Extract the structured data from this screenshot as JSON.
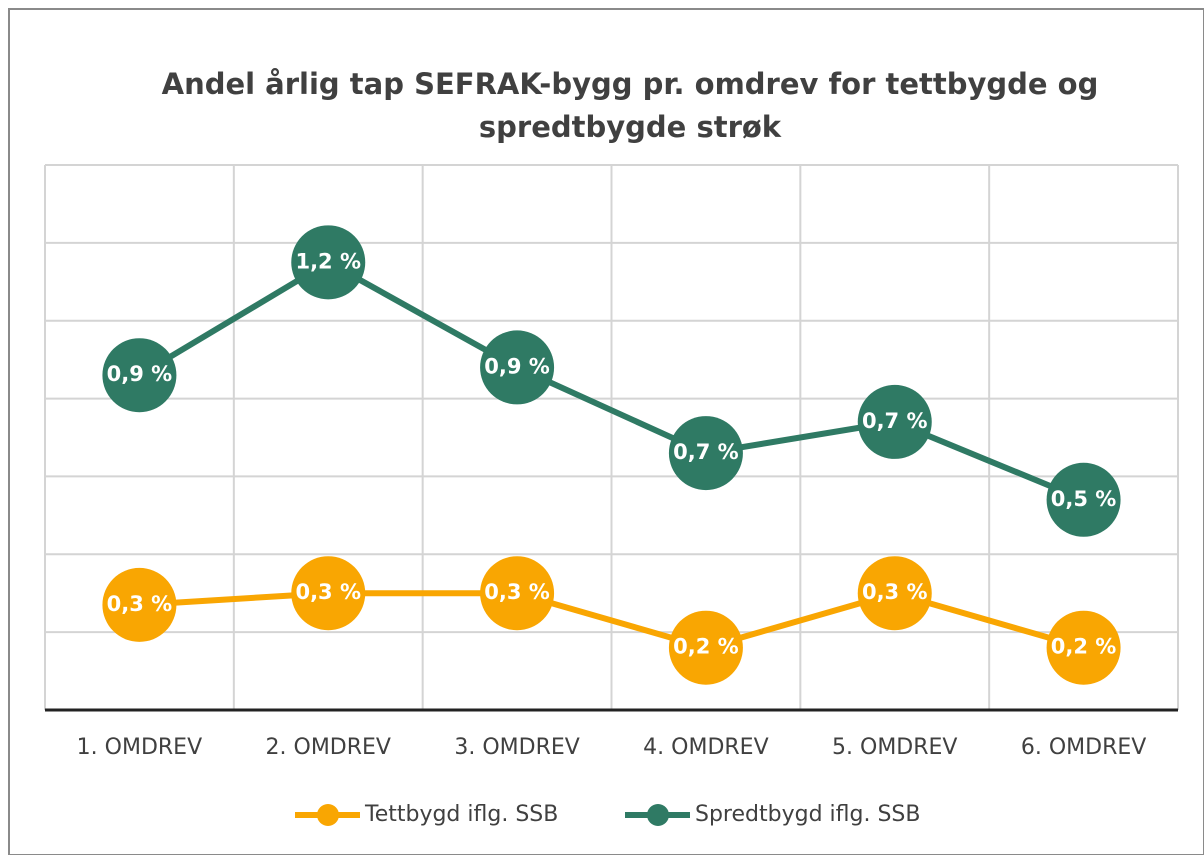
{
  "chart_data": {
    "type": "line",
    "title": [
      "Andel årlig tap SEFRAK-bygg pr. omdrev for tettbygde og",
      "spredtbygde strøk"
    ],
    "categories": [
      "1. OMDREV",
      "2. OMDREV",
      "3. OMDREV",
      "4. OMDREV",
      "5. OMDREV",
      "6. OMDREV"
    ],
    "series": [
      {
        "name": "Tettbygd iflg. SSB",
        "color": "#f9a602",
        "values": [
          0.27,
          0.3,
          0.3,
          0.16,
          0.3,
          0.16
        ],
        "value_labels": [
          "0,3 %",
          "0,3 %",
          "0,3 %",
          "0,2 %",
          "0,3 %",
          "0,2 %"
        ]
      },
      {
        "name": "Spredtbygd iflg. SSB",
        "color": "#2f7a64",
        "values": [
          0.86,
          1.15,
          0.88,
          0.66,
          0.74,
          0.54
        ],
        "value_labels": [
          "0,9 %",
          "1,2 %",
          "0,9 %",
          "0,7 %",
          "0,7 %",
          "0,5 %"
        ]
      }
    ],
    "ylim": [
      0,
      1.4
    ],
    "yticks": [
      0,
      0.2,
      0.4,
      0.6,
      0.8,
      1.0,
      1.2,
      1.4
    ],
    "grid": true,
    "legend": "bottom"
  }
}
